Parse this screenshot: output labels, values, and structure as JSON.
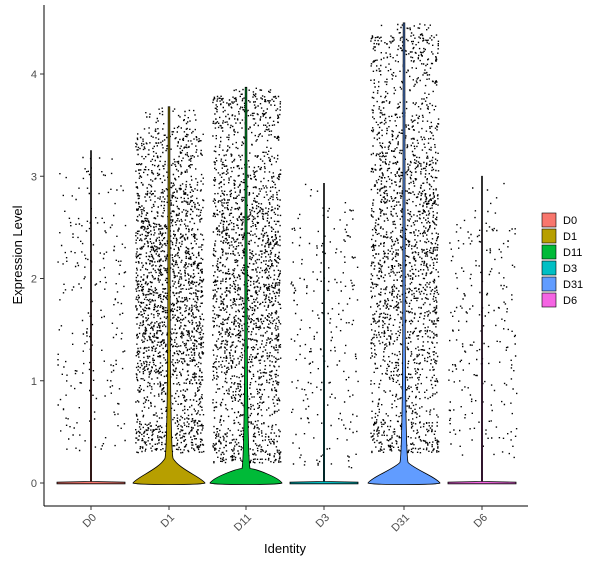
{
  "chart_data": {
    "type": "violin",
    "title": "",
    "xlabel": "Identity",
    "ylabel": "Expression Level",
    "ylim": [
      -0.25,
      4.55
    ],
    "yticks": [
      0,
      1,
      2,
      3,
      4
    ],
    "grid": false,
    "legend_position": "right",
    "categories": [
      "D0",
      "D1",
      "D11",
      "D3",
      "D31",
      "D6"
    ],
    "series": [
      {
        "name": "D0",
        "color": "#F8766D",
        "max": 3.25,
        "zero_fraction_bulge": 0.0,
        "dot_density": "low",
        "dot_range": [
          0.3,
          3.1
        ]
      },
      {
        "name": "D1",
        "color": "#B79F00",
        "max": 3.68,
        "zero_fraction_bulge": 0.32,
        "dot_density": "high",
        "dot_range": [
          0.3,
          3.4
        ]
      },
      {
        "name": "D11",
        "color": "#00BA38",
        "max": 3.87,
        "zero_fraction_bulge": 0.22,
        "dot_density": "high",
        "dot_range": [
          0.2,
          3.8
        ]
      },
      {
        "name": "D3",
        "color": "#00BFC4",
        "max": 2.93,
        "zero_fraction_bulge": 0.0,
        "dot_density": "low",
        "dot_range": [
          0.15,
          2.7
        ]
      },
      {
        "name": "D31",
        "color": "#619CFF",
        "max": 4.5,
        "zero_fraction_bulge": 0.28,
        "dot_density": "very-high",
        "dot_range": [
          0.3,
          4.4
        ]
      },
      {
        "name": "D6",
        "color": "#F564E3",
        "max": 3.0,
        "zero_fraction_bulge": 0.0,
        "dot_density": "low",
        "dot_range": [
          0.25,
          2.7
        ]
      }
    ]
  }
}
